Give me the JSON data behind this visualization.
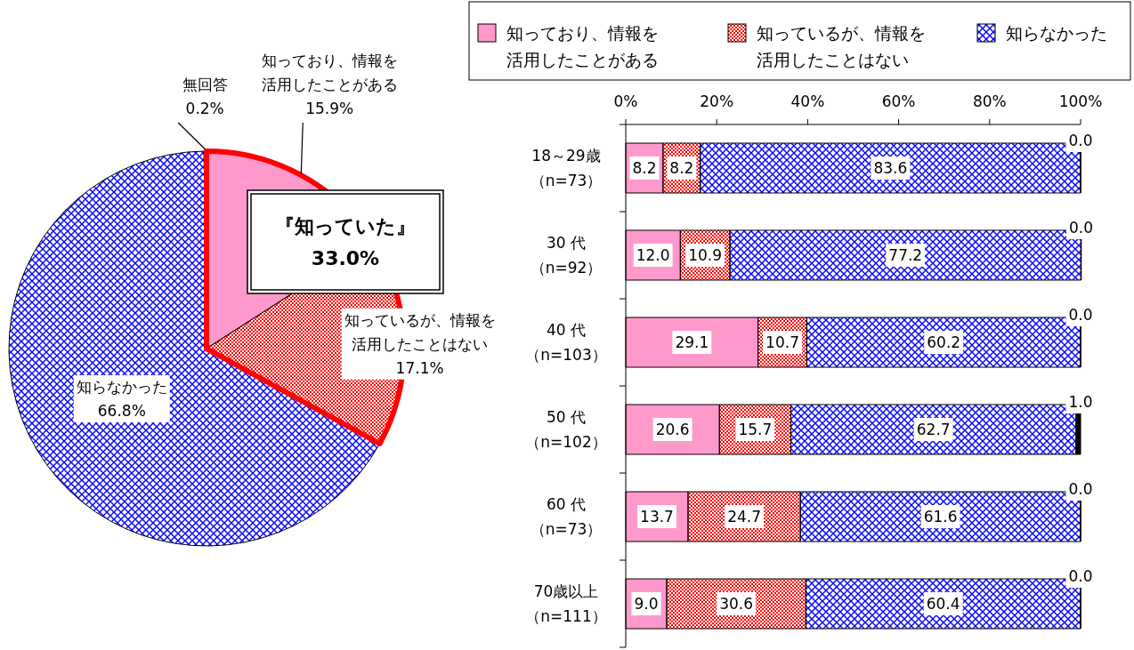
{
  "chart_data": [
    {
      "type": "pie",
      "categories": [
        "知っており、情報を活用したことがある",
        "知っているが、情報を活用したことはない",
        "知らなかった",
        "無回答"
      ],
      "values": [
        15.9,
        17.1,
        66.8,
        0.2
      ],
      "value_labels": [
        "15.9%",
        "17.1%",
        "66.8%",
        "0.2%"
      ],
      "colors": [
        "#ff99cc",
        "#ff0000",
        "#0000ff",
        "#ffffff"
      ],
      "annotations": [
        "『知っていた』\n33.0%"
      ]
    },
    {
      "type": "bar",
      "orientation": "horizontal",
      "stacked": true,
      "categories": [
        "18～29歳（n=73）",
        "30 代（n=92）",
        "40 代（n=103）",
        "50 代（n=102）",
        "60 代（n=73）",
        "70歳以上（n=111）"
      ],
      "series": [
        {
          "name": "知っており、情報を活用したことがある",
          "color": "#ff99cc",
          "values": [
            8.2,
            12.0,
            29.1,
            20.6,
            13.7,
            9.0
          ],
          "value_labels": [
            "8.2",
            "12.0",
            "29.1",
            "20.6",
            "13.7",
            "9.0"
          ]
        },
        {
          "name": "知っているが、情報を活用したことはない",
          "color": "#ff0000",
          "values": [
            8.2,
            10.9,
            10.7,
            15.7,
            24.7,
            30.6
          ],
          "value_labels": [
            "8.2",
            "10.9",
            "10.7",
            "15.7",
            "24.7",
            "30.6"
          ]
        },
        {
          "name": "知らなかった",
          "color": "#0000ff",
          "values": [
            83.6,
            77.2,
            60.2,
            62.7,
            61.6,
            60.4
          ],
          "value_labels": [
            "83.6",
            "77.2",
            "60.2",
            "62.7",
            "61.6",
            "60.4"
          ]
        },
        {
          "color": "#000000",
          "values": [
            0.0,
            0.0,
            0.0,
            1.0,
            0.0,
            0.0
          ],
          "value_labels": [
            "0.0",
            "0.0",
            "0.0",
            "1.0",
            "0.0",
            "0.0"
          ]
        }
      ],
      "xlim": [
        0,
        100
      ],
      "xticks": [
        {
          "value": 0,
          "label": "0%"
        },
        {
          "value": 20,
          "label": "20%"
        },
        {
          "value": 40,
          "label": "40%"
        },
        {
          "value": 60,
          "label": "60%"
        },
        {
          "value": 80,
          "label": "80%"
        },
        {
          "value": 100,
          "label": "100%"
        }
      ],
      "legend": "top"
    }
  ]
}
